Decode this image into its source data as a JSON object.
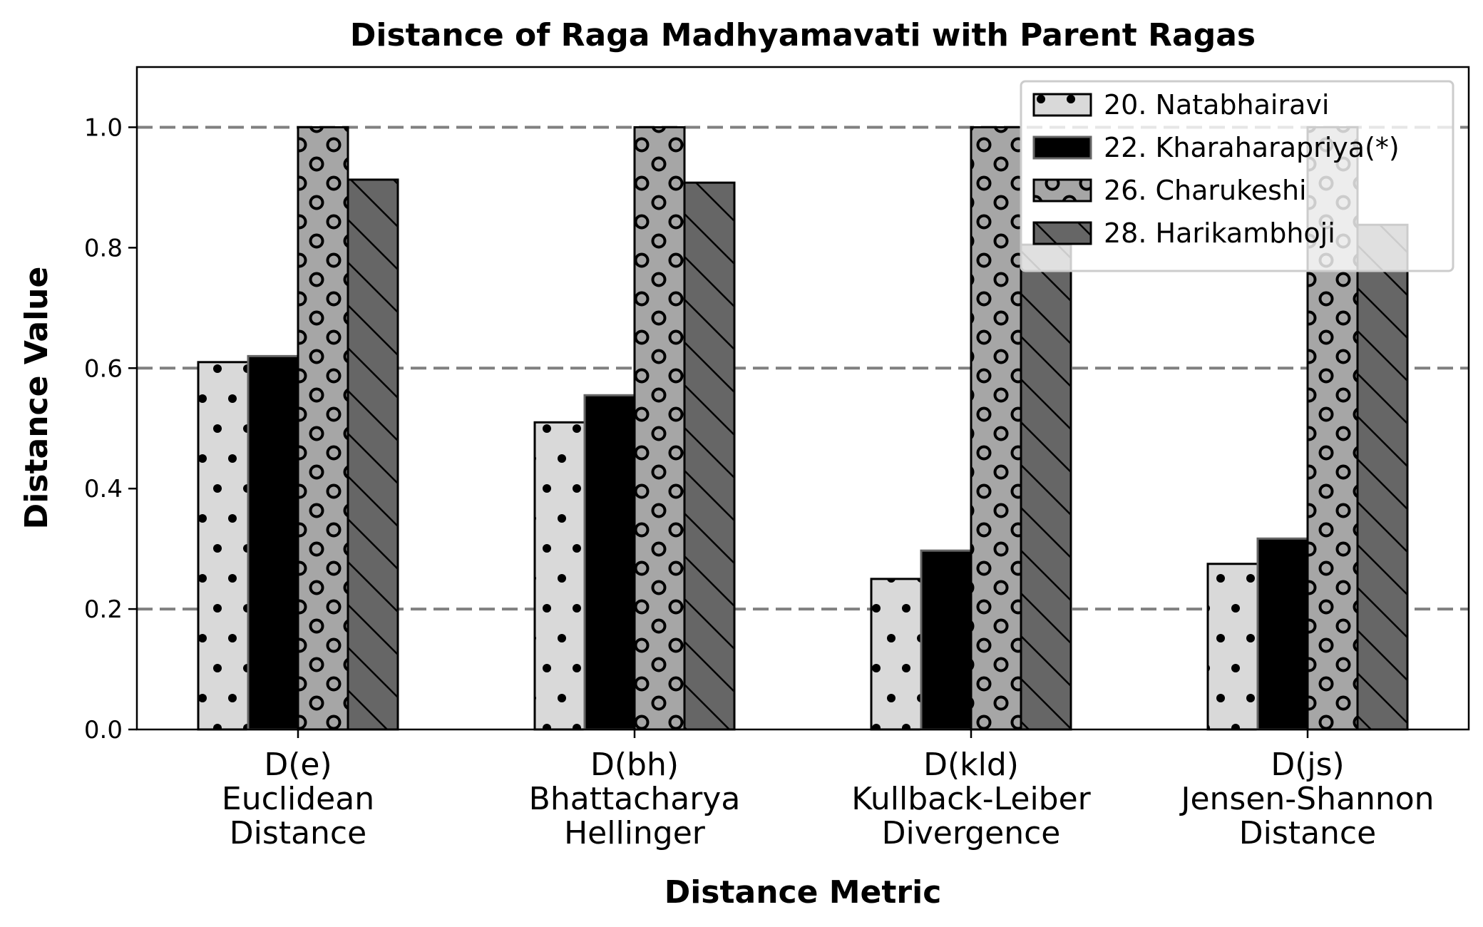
{
  "chart_data": {
    "type": "bar",
    "title": "Distance of Raga Madhyamavati with Parent Ragas",
    "xlabel": "Distance Metric",
    "ylabel": "Distance Value",
    "ylim": [
      0,
      1.1
    ],
    "yticks": [
      "0.0",
      "0.2",
      "0.4",
      "0.6",
      "0.8",
      "1.0"
    ],
    "categories": [
      [
        "D(e)",
        "Euclidean",
        "Distance"
      ],
      [
        "D(bh)",
        "Bhattacharya",
        "Hellinger"
      ],
      [
        "D(kld)",
        "Kullback-Leiber",
        "Divergence"
      ],
      [
        "D(js)",
        "Jensen-Shannon",
        "Distance"
      ]
    ],
    "reference_lines": [
      0.2,
      0.6,
      1.0
    ],
    "legend_position": "top-right",
    "series": [
      {
        "name": "20. Natabhairavi",
        "values": [
          0.61,
          0.51,
          0.25,
          0.275
        ],
        "color": "#d9d9d9",
        "pattern": "dots"
      },
      {
        "name": "22. Kharaharapriya(*)",
        "values": [
          0.62,
          0.555,
          0.297,
          0.317
        ],
        "color": "#000000",
        "pattern": "none"
      },
      {
        "name": "26. Charukeshi",
        "values": [
          1.0,
          1.0,
          1.0,
          1.0
        ],
        "color": "#a6a6a6",
        "pattern": "circles"
      },
      {
        "name": "28. Harikambhoji",
        "values": [
          0.913,
          0.908,
          0.805,
          0.838
        ],
        "color": "#666666",
        "pattern": "hatch"
      }
    ]
  }
}
